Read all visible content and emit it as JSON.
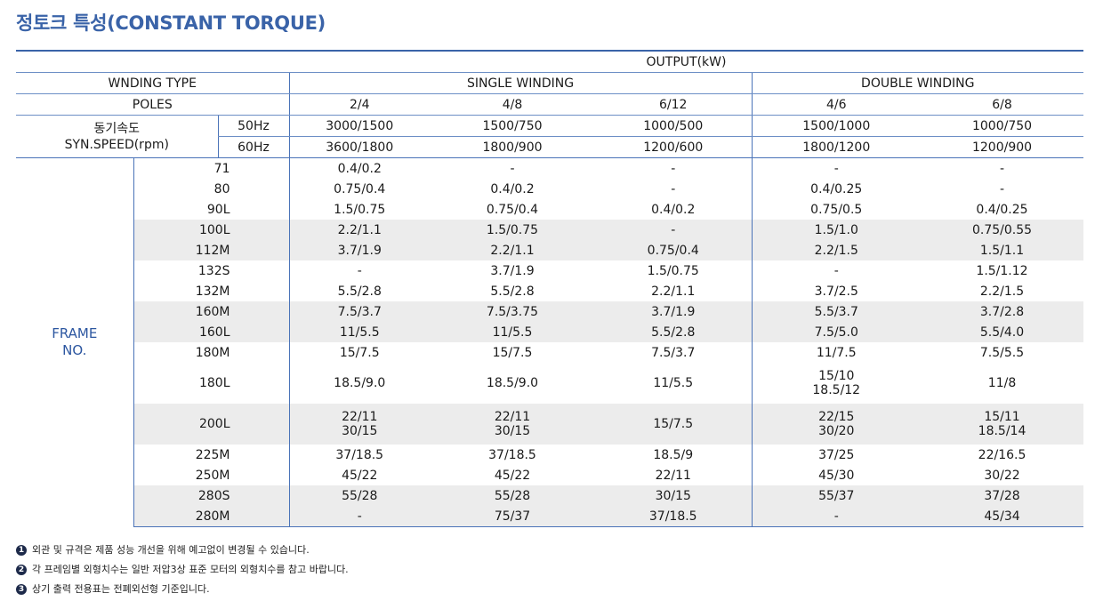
{
  "title": "정토크 특성(CONSTANT TORQUE)",
  "header": {
    "output": "OUTPUT(kW)",
    "winding_type_label": "WNDING TYPE",
    "single_winding": "SINGLE WINDING",
    "double_winding": "DOUBLE WINDING",
    "poles_label": "POLES",
    "poles": [
      "2/4",
      "4/8",
      "6/12",
      "4/6",
      "6/8"
    ],
    "sync_speed_label_kr": "동기속도",
    "sync_speed_label_en": "SYN.SPEED(rpm)",
    "hz50": "50Hz",
    "hz60": "60Hz",
    "speed50": [
      "3000/1500",
      "1500/750",
      "1000/500",
      "1500/1000",
      "1000/750"
    ],
    "speed60": [
      "3600/1800",
      "1800/900",
      "1200/600",
      "1800/1200",
      "1200/900"
    ]
  },
  "frame_label_1": "FRAME",
  "frame_label_2": "NO.",
  "rows": [
    {
      "frame": "71",
      "v": [
        "0.4/0.2",
        "-",
        "-",
        "-",
        "-"
      ]
    },
    {
      "frame": "80",
      "v": [
        "0.75/0.4",
        "0.4/0.2",
        "-",
        "0.4/0.25",
        "-"
      ]
    },
    {
      "frame": "90L",
      "v": [
        "1.5/0.75",
        "0.75/0.4",
        "0.4/0.2",
        "0.75/0.5",
        "0.4/0.25"
      ]
    },
    {
      "frame": "100L",
      "v": [
        "2.2/1.1",
        "1.5/0.75",
        "-",
        "1.5/1.0",
        "0.75/0.55"
      ]
    },
    {
      "frame": "112M",
      "v": [
        "3.7/1.9",
        "2.2/1.1",
        "0.75/0.4",
        "2.2/1.5",
        "1.5/1.1"
      ]
    },
    {
      "frame": "132S",
      "v": [
        "-",
        "3.7/1.9",
        "1.5/0.75",
        "-",
        "1.5/1.12"
      ]
    },
    {
      "frame": "132M",
      "v": [
        "5.5/2.8",
        "5.5/2.8",
        "2.2/1.1",
        "3.7/2.5",
        "2.2/1.5"
      ]
    },
    {
      "frame": "160M",
      "v": [
        "7.5/3.7",
        "7.5/3.75",
        "3.7/1.9",
        "5.5/3.7",
        "3.7/2.8"
      ]
    },
    {
      "frame": "160L",
      "v": [
        "11/5.5",
        "11/5.5",
        "5.5/2.8",
        "7.5/5.0",
        "5.5/4.0"
      ]
    },
    {
      "frame": "180M",
      "v": [
        "15/7.5",
        "15/7.5",
        "7.5/3.7",
        "11/7.5",
        "7.5/5.5"
      ]
    },
    {
      "frame": "180L",
      "v": [
        "18.5/9.0",
        "18.5/9.0",
        "11/5.5",
        "15/10",
        "11/8"
      ],
      "v2": [
        "",
        "",
        "",
        "18.5/12",
        ""
      ]
    },
    {
      "frame": "200L",
      "v": [
        "22/11",
        "22/11",
        "15/7.5",
        "22/15",
        "15/11"
      ],
      "v2": [
        "30/15",
        "30/15",
        "",
        "30/20",
        "18.5/14"
      ]
    },
    {
      "frame": "225M",
      "v": [
        "37/18.5",
        "37/18.5",
        "18.5/9",
        "37/25",
        "22/16.5"
      ]
    },
    {
      "frame": "250M",
      "v": [
        "45/22",
        "45/22",
        "22/11",
        "45/30",
        "30/22"
      ]
    },
    {
      "frame": "280S",
      "v": [
        "55/28",
        "55/28",
        "30/15",
        "55/37",
        "37/28"
      ]
    },
    {
      "frame": "280M",
      "v": [
        "-",
        "75/37",
        "37/18.5",
        "-",
        "45/34"
      ]
    }
  ],
  "footnotes": [
    {
      "bullet": "1",
      "text": "외관 및 규격은 제품 성능 개선을 위해 예고없이 변경될 수 있습니다."
    },
    {
      "bullet": "2",
      "text": "각 프레임별 외형치수는 일반 저압3상 표준 모터의 외형치수를 참고 바랍니다."
    },
    {
      "bullet": "3",
      "text": "상기 출력 전용표는 전폐외선형 기준입니다."
    }
  ]
}
